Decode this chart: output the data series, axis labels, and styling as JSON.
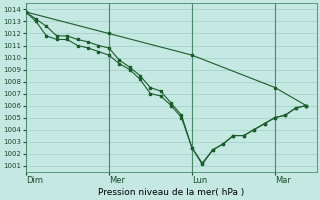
{
  "title": "",
  "xlabel": "Pression niveau de la mer( hPa )",
  "background_color": "#c5e8e2",
  "plot_background_color": "#c5e8e2",
  "grid_color": "#9fcfc8",
  "line_color": "#1a5c2a",
  "vline_color": "#4a8a6a",
  "ylim": [
    1000.5,
    1014.5
  ],
  "yticks": [
    1001,
    1002,
    1003,
    1004,
    1005,
    1006,
    1007,
    1008,
    1009,
    1010,
    1011,
    1012,
    1013,
    1014
  ],
  "day_labels": [
    "Dim",
    "Mer",
    "Lun",
    "Mar"
  ],
  "day_positions": [
    0,
    48,
    96,
    144
  ],
  "xlim": [
    0,
    168
  ],
  "series1_x": [
    0,
    6,
    12,
    18,
    24,
    30,
    36,
    42,
    48,
    54,
    60,
    66,
    72,
    78,
    84,
    90,
    96,
    102,
    108,
    114,
    120,
    126,
    132,
    138,
    144,
    150,
    156,
    162
  ],
  "series1_y": [
    1013.8,
    1013.2,
    1012.6,
    1011.8,
    1011.8,
    1011.5,
    1011.3,
    1011.0,
    1010.8,
    1009.8,
    1009.2,
    1008.5,
    1007.5,
    1007.2,
    1006.2,
    1005.2,
    1002.5,
    1001.1,
    1002.3,
    1002.8,
    1003.5,
    1003.5,
    1004.0,
    1004.5,
    1005.0,
    1005.2,
    1005.8,
    1006.0
  ],
  "series2_x": [
    0,
    6,
    12,
    18,
    24,
    30,
    36,
    42,
    48,
    54,
    60,
    66,
    72,
    78,
    84,
    90,
    96,
    102,
    108,
    114,
    120,
    126,
    132,
    138,
    144,
    150,
    156,
    162
  ],
  "series2_y": [
    1013.8,
    1013.0,
    1011.8,
    1011.5,
    1011.5,
    1011.0,
    1010.8,
    1010.5,
    1010.2,
    1009.5,
    1009.0,
    1008.2,
    1007.0,
    1006.8,
    1006.0,
    1005.0,
    1002.5,
    1001.2,
    1002.3,
    1002.8,
    1003.5,
    1003.5,
    1004.0,
    1004.5,
    1005.0,
    1005.2,
    1005.8,
    1006.0
  ],
  "series3_x": [
    0,
    48,
    96,
    144,
    162
  ],
  "series3_y": [
    1013.8,
    1012.0,
    1010.2,
    1007.5,
    1006.0
  ],
  "marker": "s",
  "marker_size": 2.0,
  "linewidth": 0.8
}
